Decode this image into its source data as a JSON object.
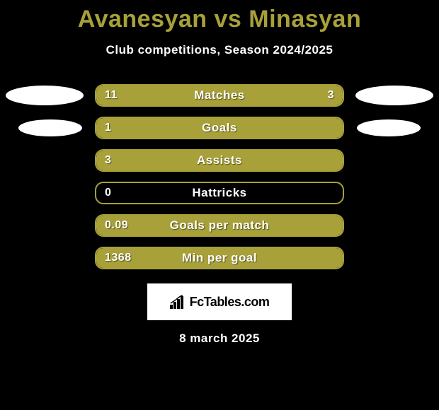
{
  "title": "Avanesyan vs Minasyan",
  "subtitle": "Club competitions, Season 2024/2025",
  "footer_date": "8 march 2025",
  "logo_text": "FcTables.com",
  "colors": {
    "background": "#000000",
    "accent": "#a8a038",
    "text": "#ffffff",
    "ellipse": "#ffffff",
    "logo_bg": "#ffffff",
    "logo_text": "#000000"
  },
  "stats": [
    {
      "label": "Matches",
      "left_value": "11",
      "right_value": "3",
      "left_pct": 78.6,
      "right_pct": 21.4,
      "show_left_ellipse": true,
      "show_right_ellipse": true,
      "ellipse_small": false
    },
    {
      "label": "Goals",
      "left_value": "1",
      "right_value": "",
      "left_pct": 100,
      "right_pct": 0,
      "show_left_ellipse": true,
      "show_right_ellipse": true,
      "ellipse_small": true
    },
    {
      "label": "Assists",
      "left_value": "3",
      "right_value": "",
      "left_pct": 100,
      "right_pct": 0,
      "show_left_ellipse": false,
      "show_right_ellipse": false,
      "ellipse_small": false
    },
    {
      "label": "Hattricks",
      "left_value": "0",
      "right_value": "",
      "left_pct": 0,
      "right_pct": 0,
      "show_left_ellipse": false,
      "show_right_ellipse": false,
      "ellipse_small": false
    },
    {
      "label": "Goals per match",
      "left_value": "0.09",
      "right_value": "",
      "left_pct": 100,
      "right_pct": 0,
      "show_left_ellipse": false,
      "show_right_ellipse": false,
      "ellipse_small": false
    },
    {
      "label": "Min per goal",
      "left_value": "1368",
      "right_value": "",
      "left_pct": 100,
      "right_pct": 0,
      "show_left_ellipse": false,
      "show_right_ellipse": false,
      "ellipse_small": false
    }
  ]
}
